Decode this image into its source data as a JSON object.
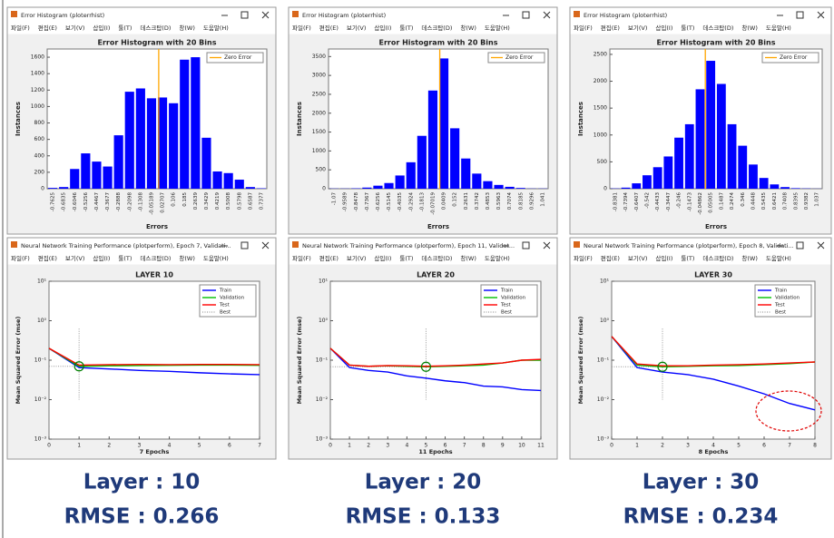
{
  "menu": [
    "파일(F)",
    "편집(E)",
    "보기(V)",
    "삽입(I)",
    "툴(T)",
    "데스크탑(D)",
    "창(W)",
    "도움말(H)"
  ],
  "windows": [
    {
      "title": "Error Histogram (ploterrhist)"
    },
    {
      "title": "Error Histogram (ploterrhist)"
    },
    {
      "title": "Error Histogram (ploterrhist)"
    },
    {
      "title": "Neural Network Training Performance (plotperform), Epoch 7, Validati..."
    },
    {
      "title": "Neural Network Training Performance (plotperform), Epoch 11, Validat..."
    },
    {
      "title": "Neural Network Training Performance (plotperform), Epoch 8, Validati..."
    }
  ],
  "captions": [
    {
      "layer": "Layer : 10",
      "rmse": "RMSE : 0.266"
    },
    {
      "layer": "Layer : 20",
      "rmse": "RMSE : 0.133"
    },
    {
      "layer": "Layer : 30",
      "rmse": "RMSE : 0.234"
    }
  ],
  "chart_data": [
    {
      "type": "bar",
      "title": "Error Histogram with 20 Bins",
      "xlabel": "Errors",
      "ylabel": "Instances",
      "categories": [
        "-0.7625",
        "-0.6835",
        "-0.6046",
        "-0.5256",
        "-0.4467",
        "-0.3677",
        "-0.2888",
        "-0.2098",
        "-0.1308",
        "-0.05189",
        "0.02707",
        "0.106",
        "0.185",
        "0.2639",
        "0.3429",
        "0.4219",
        "0.5008",
        "0.5798",
        "0.6587",
        "0.7377"
      ],
      "values": [
        10,
        20,
        240,
        430,
        330,
        270,
        650,
        1180,
        1220,
        1100,
        1110,
        1040,
        1570,
        1600,
        620,
        210,
        190,
        110,
        20,
        5
      ],
      "color": "#0000ff",
      "ylim": [
        0,
        1700
      ],
      "yticks": [
        0,
        200,
        400,
        600,
        800,
        1000,
        1200,
        1400,
        1600
      ],
      "reference_line": {
        "name": "Zero Error",
        "x": 0,
        "color": "#ffa500"
      },
      "legend": "northeast"
    },
    {
      "type": "bar",
      "title": "Error Histogram with 20 Bins",
      "xlabel": "Errors",
      "ylabel": "Instances",
      "categories": [
        "-1.07",
        "-0.9589",
        "-0.8478",
        "-0.7367",
        "-0.6256",
        "-0.5145",
        "-0.4035",
        "-0.2924",
        "-0.1813",
        "-0.07019",
        "0.0409",
        "0.152",
        "0.2631",
        "0.3742",
        "0.4853",
        "0.5963",
        "0.7074",
        "0.8185",
        "0.9296",
        "1.041"
      ],
      "values": [
        5,
        5,
        10,
        30,
        80,
        150,
        350,
        700,
        1400,
        2600,
        3450,
        1600,
        800,
        400,
        200,
        100,
        50,
        20,
        5,
        5
      ],
      "color": "#0000ff",
      "ylim": [
        0,
        3700
      ],
      "yticks": [
        0,
        500,
        1000,
        1500,
        2000,
        2500,
        3000,
        3500
      ],
      "reference_line": {
        "name": "Zero Error",
        "x": 0,
        "color": "#ffa500"
      },
      "legend": "northeast"
    },
    {
      "type": "bar",
      "title": "Error Histogram with 20 Bins",
      "xlabel": "Errors",
      "ylabel": "Instances",
      "categories": [
        "-0.8381",
        "-0.7394",
        "-0.6407",
        "-0.542",
        "-0.4433",
        "-0.3447",
        "-0.246",
        "-0.1473",
        "-0.04862",
        "0.05005",
        "0.1487",
        "0.2474",
        "0.346",
        "0.4448",
        "0.5435",
        "0.6421",
        "0.7408",
        "0.8395",
        "0.9382",
        "1.037"
      ],
      "values": [
        5,
        20,
        100,
        250,
        400,
        600,
        950,
        1200,
        1850,
        2380,
        1950,
        1200,
        800,
        450,
        200,
        80,
        30,
        10,
        5,
        2
      ],
      "color": "#0000ff",
      "ylim": [
        0,
        2600
      ],
      "yticks": [
        0,
        500,
        1000,
        1500,
        2000,
        2500
      ],
      "reference_line": {
        "name": "Zero Error",
        "x": 0,
        "color": "#ffa500"
      },
      "legend": "northeast"
    },
    {
      "type": "line",
      "title": "LAYER 10",
      "xlabel": "7 Epochs",
      "ylabel": "Mean Squared Error  (mse)",
      "yscale": "log",
      "x": [
        0,
        1,
        2,
        3,
        4,
        5,
        6,
        7
      ],
      "xlim": [
        0,
        7
      ],
      "xticks": [
        0,
        1,
        2,
        3,
        4,
        5,
        6,
        7
      ],
      "ylim": [
        0.001,
        10
      ],
      "yticks": [
        {
          "value": 0.001,
          "label": "10⁻³"
        },
        {
          "value": 0.01,
          "label": "10⁻²"
        },
        {
          "value": 0.1,
          "label": "10⁻¹"
        },
        {
          "value": 1,
          "label": "10⁰"
        },
        {
          "value": 10,
          "label": "10¹"
        }
      ],
      "series": [
        {
          "name": "Train",
          "color": "#0000ff",
          "values": [
            0.2,
            0.065,
            0.06,
            0.055,
            0.052,
            0.048,
            0.045,
            0.043
          ]
        },
        {
          "name": "Validation",
          "color": "#00c000",
          "values": [
            0.2,
            0.07,
            0.072,
            0.073,
            0.074,
            0.075,
            0.075,
            0.074
          ]
        },
        {
          "name": "Test",
          "color": "#ff0000",
          "values": [
            0.2,
            0.075,
            0.077,
            0.078,
            0.077,
            0.078,
            0.078,
            0.077
          ]
        }
      ],
      "best": {
        "name": "Best",
        "x": 1,
        "y": 0.07,
        "color": "#008000"
      },
      "legend": "northeast"
    },
    {
      "type": "line",
      "title": "LAYER 20",
      "xlabel": "11 Epochs",
      "ylabel": "Mean Squared Error  (mse)",
      "yscale": "log",
      "x": [
        0,
        1,
        2,
        3,
        4,
        5,
        6,
        7,
        8,
        9,
        10,
        11
      ],
      "xlim": [
        0,
        11
      ],
      "xticks": [
        0,
        1,
        2,
        3,
        4,
        5,
        6,
        7,
        8,
        9,
        10,
        11
      ],
      "ylim": [
        0.001,
        10
      ],
      "yticks": [
        {
          "value": 0.001,
          "label": "10⁻³"
        },
        {
          "value": 0.01,
          "label": "10⁻²"
        },
        {
          "value": 0.1,
          "label": "10⁻¹"
        },
        {
          "value": 1,
          "label": "10⁰"
        },
        {
          "value": 10,
          "label": "10¹"
        }
      ],
      "series": [
        {
          "name": "Train",
          "color": "#0000ff",
          "values": [
            0.2,
            0.065,
            0.055,
            0.05,
            0.04,
            0.035,
            0.03,
            0.027,
            0.022,
            0.021,
            0.018,
            0.017
          ]
        },
        {
          "name": "Validation",
          "color": "#00c000",
          "values": [
            0.2,
            0.075,
            0.07,
            0.072,
            0.07,
            0.068,
            0.07,
            0.072,
            0.075,
            0.085,
            0.1,
            0.1
          ]
        },
        {
          "name": "Test",
          "color": "#ff0000",
          "values": [
            0.2,
            0.075,
            0.07,
            0.073,
            0.072,
            0.07,
            0.072,
            0.075,
            0.08,
            0.085,
            0.1,
            0.105
          ]
        }
      ],
      "best": {
        "name": "Best",
        "x": 5,
        "y": 0.068,
        "color": "#008000"
      },
      "legend": "northeast"
    },
    {
      "type": "line",
      "title": "LAYER 30",
      "xlabel": "8 Epochs",
      "ylabel": "Mean Squared Error  (mse)",
      "yscale": "log",
      "x": [
        0,
        1,
        2,
        3,
        4,
        5,
        6,
        7,
        8
      ],
      "xlim": [
        0,
        8
      ],
      "xticks": [
        0,
        1,
        2,
        3,
        4,
        5,
        6,
        7,
        8
      ],
      "ylim": [
        0.001,
        10
      ],
      "yticks": [
        {
          "value": 0.001,
          "label": "10⁻³"
        },
        {
          "value": 0.01,
          "label": "10⁻²"
        },
        {
          "value": 0.1,
          "label": "10⁻¹"
        },
        {
          "value": 1,
          "label": "10⁰"
        },
        {
          "value": 10,
          "label": "10¹"
        }
      ],
      "series": [
        {
          "name": "Train",
          "color": "#0000ff",
          "values": [
            0.4,
            0.065,
            0.05,
            0.043,
            0.033,
            0.022,
            0.014,
            0.008,
            0.0055
          ]
        },
        {
          "name": "Validation",
          "color": "#00c000",
          "values": [
            0.4,
            0.075,
            0.068,
            0.07,
            0.072,
            0.073,
            0.077,
            0.082,
            0.09
          ]
        },
        {
          "name": "Test",
          "color": "#ff0000",
          "values": [
            0.4,
            0.08,
            0.072,
            0.072,
            0.075,
            0.077,
            0.08,
            0.085,
            0.09
          ]
        }
      ],
      "best": {
        "name": "Best",
        "x": 2,
        "y": 0.068,
        "color": "#008000"
      },
      "legend": "northeast"
    }
  ]
}
